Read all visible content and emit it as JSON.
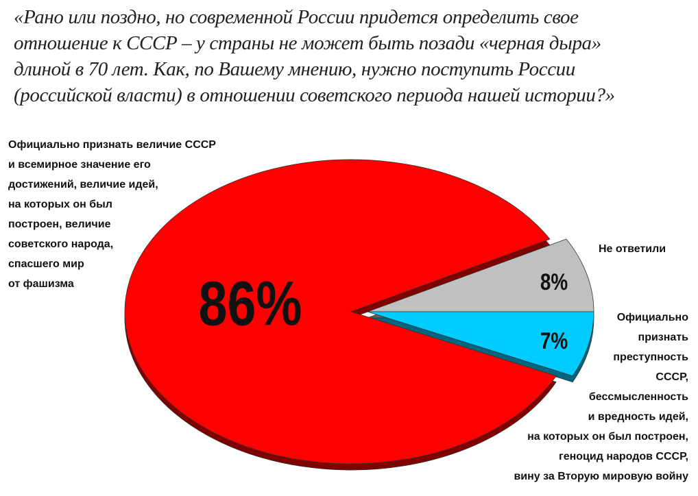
{
  "chart_data": {
    "type": "pie",
    "title": "«Рано или поздно, но современной России придется определить свое\nотношение к СССР – у страны не может быть позади «черная дыра»\nдлиной в 70 лет. Как, по Вашему мнению, нужно поступить России\n(российской власти) в отношении советского периода нашей истории?»",
    "categories": [
      "Официально признать величие СССР\nи всемирное значение его\nдостижений, величие идей,\nна которых он был\nпостроен, величие\nсоветского народа,\nспасшего мир\nот фашизма",
      "Не ответили",
      "Официально\nпризнать\nпреступность\nСССР,\nбессмысленность\nи вредность идей,\nна которых он был построен,\nгеноцид народов СССР,\nвину за Вторую мировую войну"
    ],
    "values": [
      86,
      8,
      7
    ],
    "value_labels": [
      "86%",
      "8%",
      "7%"
    ],
    "colors": [
      "#ff0000",
      "#c0c0c0",
      "#00ccff"
    ]
  }
}
